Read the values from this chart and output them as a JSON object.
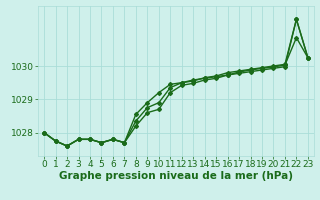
{
  "title": "",
  "xlabel": "Graphe pression niveau de la mer (hPa)",
  "hours": [
    0,
    1,
    2,
    3,
    4,
    5,
    6,
    7,
    8,
    9,
    10,
    11,
    12,
    13,
    14,
    15,
    16,
    17,
    18,
    19,
    20,
    21,
    22,
    23
  ],
  "line1": [
    1028.0,
    1027.75,
    1027.6,
    1027.8,
    1027.8,
    1027.7,
    1027.8,
    1027.7,
    1028.35,
    1028.75,
    1028.9,
    1029.35,
    1029.5,
    1029.55,
    1029.65,
    1029.7,
    1029.8,
    1029.85,
    1029.9,
    1029.95,
    1030.0,
    1030.05,
    1031.4,
    1030.25
  ],
  "line2": [
    1028.0,
    1027.75,
    1027.6,
    1027.8,
    1027.8,
    1027.7,
    1027.8,
    1027.7,
    1028.55,
    1028.9,
    1029.2,
    1029.45,
    1029.5,
    1029.58,
    1029.63,
    1029.68,
    1029.73,
    1029.78,
    1029.83,
    1029.88,
    1029.93,
    1029.98,
    1031.4,
    1030.25
  ],
  "line3": [
    1028.0,
    1027.75,
    1027.6,
    1027.8,
    1027.8,
    1027.7,
    1027.8,
    1027.7,
    1028.2,
    1028.6,
    1028.7,
    1029.2,
    1029.42,
    1029.48,
    1029.58,
    1029.63,
    1029.73,
    1029.82,
    1029.88,
    1029.93,
    1029.97,
    1030.03,
    1030.85,
    1030.25
  ],
  "line_color": "#1a6b1a",
  "marker": "D",
  "marker_size": 2.0,
  "bg_color": "#cff0eb",
  "grid_color": "#aaddd8",
  "ylim": [
    1027.3,
    1031.8
  ],
  "yticks": [
    1028,
    1029,
    1030
  ],
  "xlim": [
    -0.5,
    23.5
  ],
  "xlabel_fontsize": 7.5,
  "tick_fontsize": 6.5,
  "linewidth": 1.0
}
